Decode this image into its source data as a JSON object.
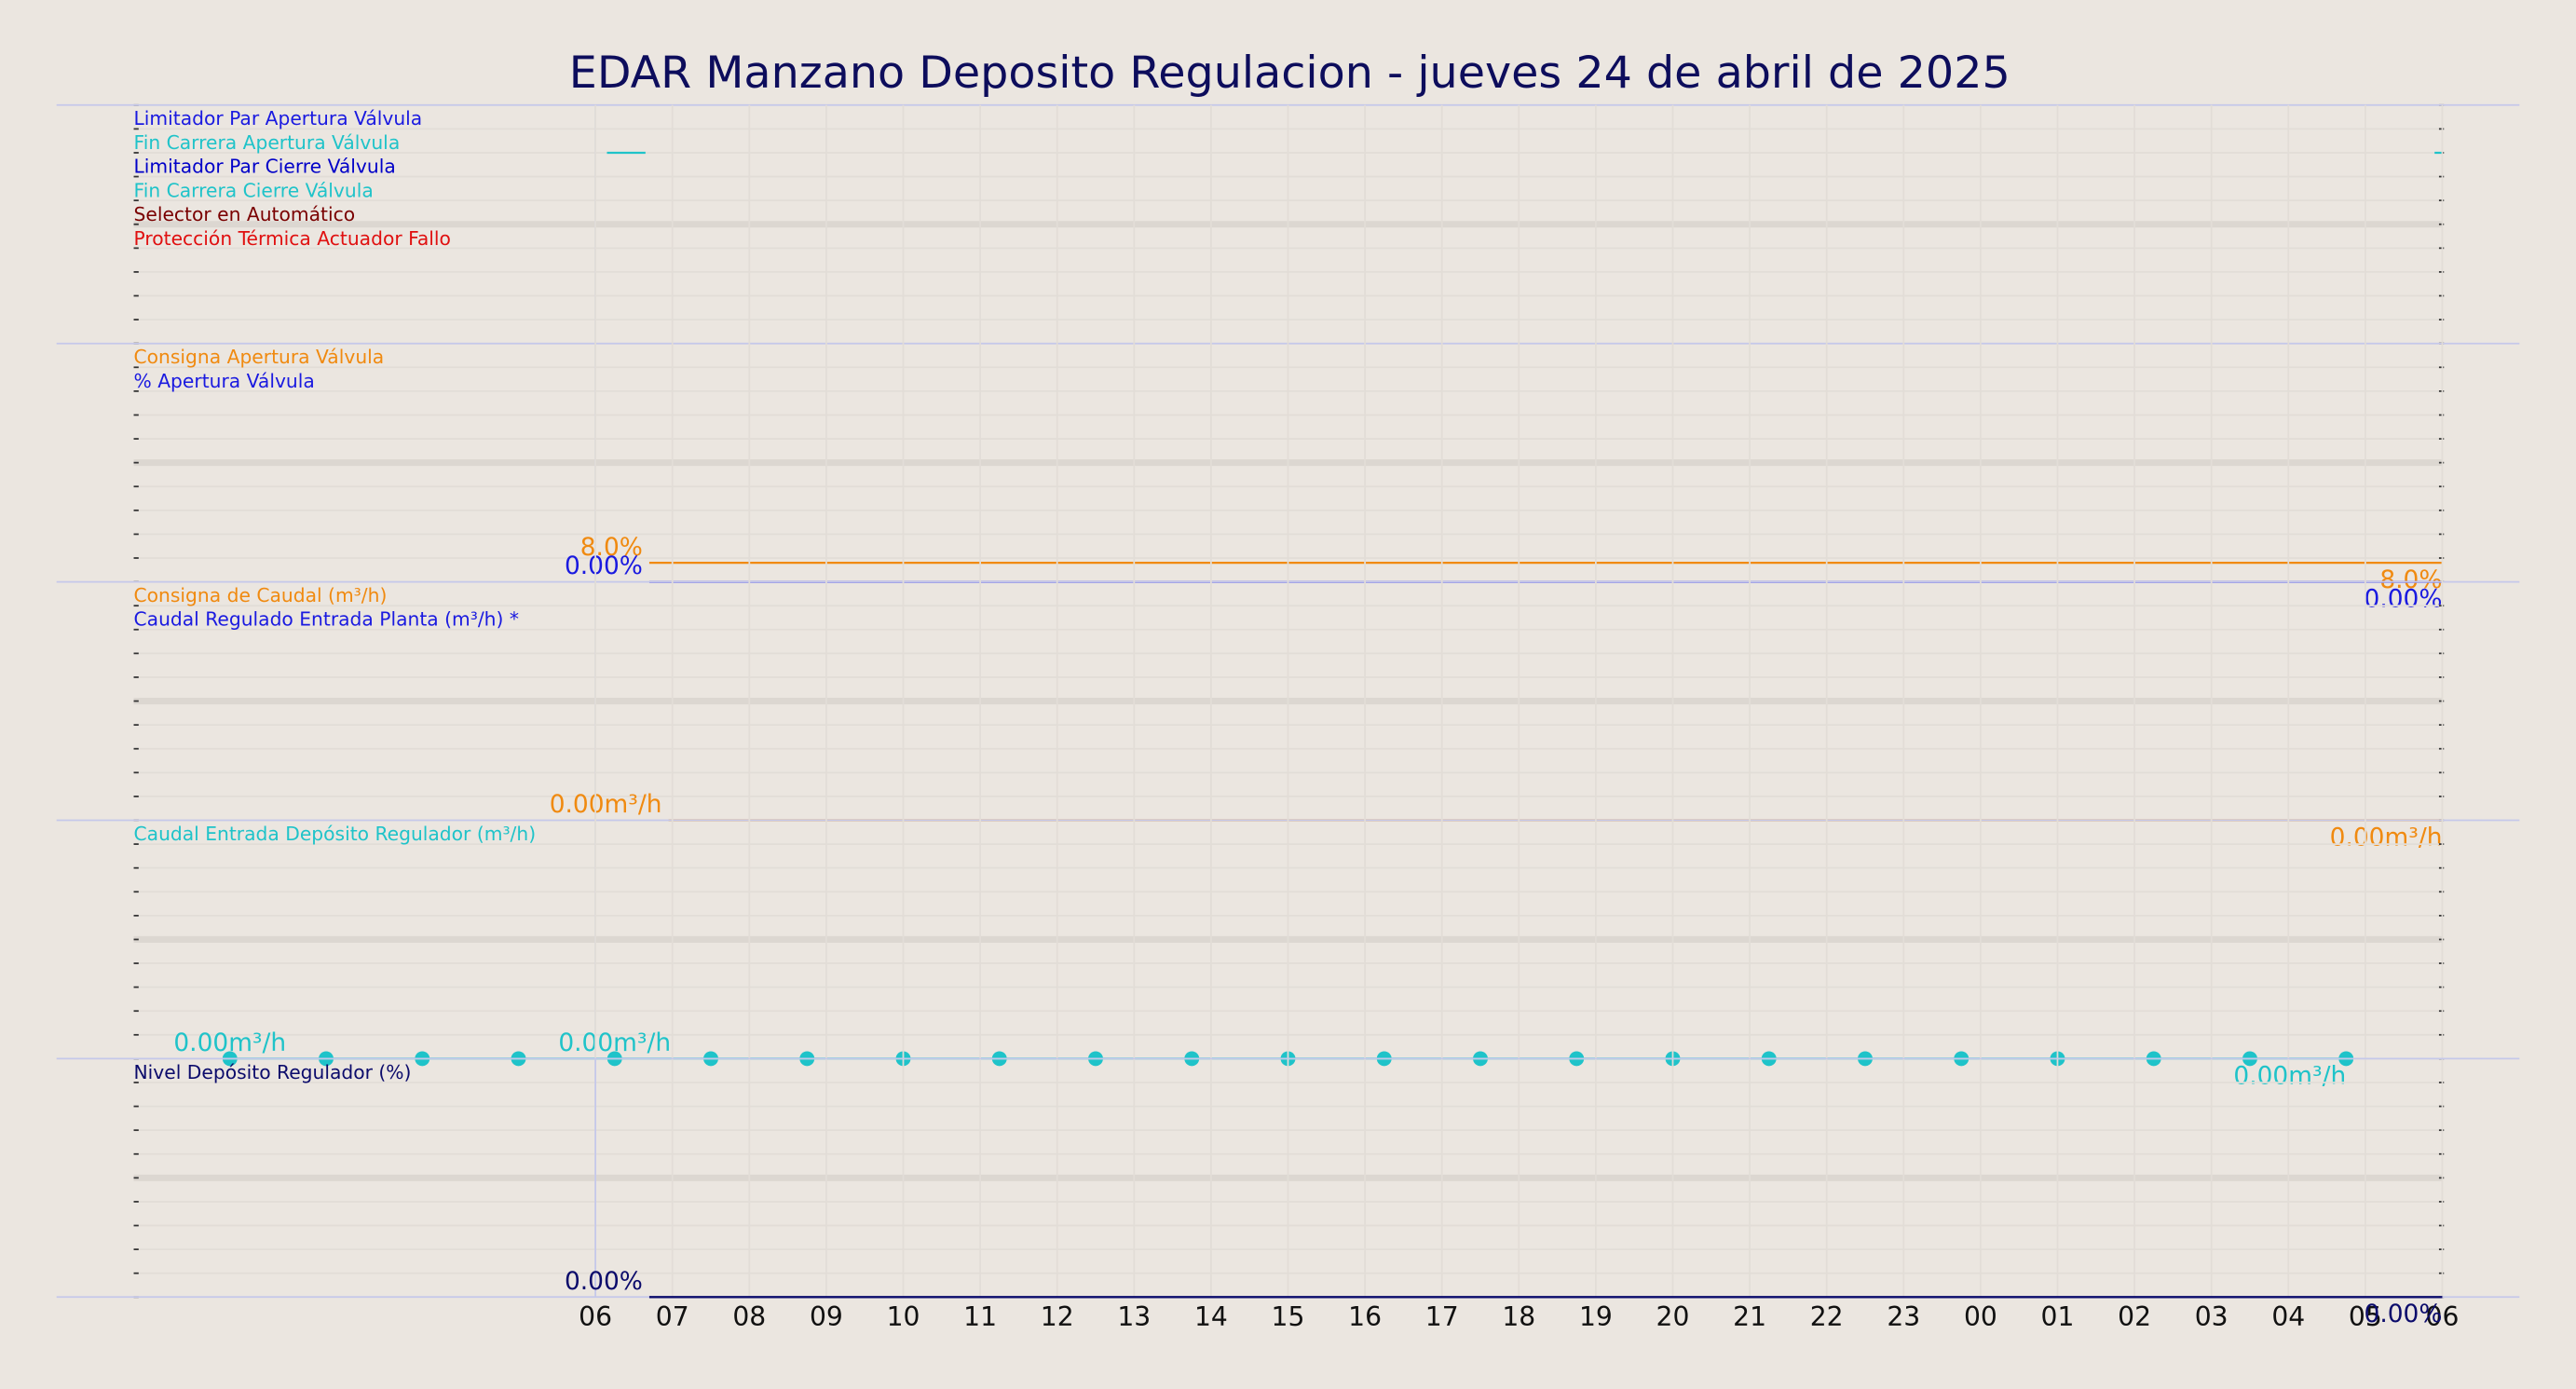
{
  "title": "EDAR Manzano Deposito Regulacion   -   jueves 24 de abril de 2025",
  "chart_data": [
    {
      "type": "line",
      "xlim": [
        -6,
        24
      ],
      "ylim": [
        0,
        100
      ],
      "yticks": [
        0,
        10,
        20,
        30,
        40,
        50,
        60,
        70,
        80,
        90,
        100
      ],
      "series": [
        {
          "name": "Limitador Par Apertura Válvula",
          "color": "#1a1ae0"
        },
        {
          "name": "Fin Carrera Apertura Válvula",
          "color": "#1fc3c9",
          "x": [
            0.15,
            0.65,
            12,
            23.9,
            24
          ],
          "values": [
            80,
            80,
            null,
            80,
            80
          ]
        },
        {
          "name": "Limitador Par Cierre Válvula",
          "color": "#0000c8"
        },
        {
          "name": "Fin Carrera Cierre Válvula",
          "color": "#1fc3c9"
        },
        {
          "name": "Selector en Automático",
          "color": "#7a0000"
        },
        {
          "name": "Protección Térmica Actuador Fallo",
          "color": "#e01010"
        }
      ]
    },
    {
      "type": "line",
      "xlim": [
        -6,
        24
      ],
      "ylim": [
        0,
        100
      ],
      "yticks": [
        0,
        10,
        20,
        30,
        40,
        50,
        60,
        70,
        80,
        90,
        100
      ],
      "series": [
        {
          "name": "Consigna Apertura Válvula",
          "color": "#f08a10",
          "x": [
            0.7,
            24
          ],
          "values": [
            8,
            8
          ],
          "value_labels": [
            "8.0%",
            "8.0%"
          ]
        },
        {
          "name": "% Apertura Válvula",
          "color": "#1a1ae0",
          "x": [
            0.7,
            24
          ],
          "values": [
            0,
            0
          ],
          "value_labels": [
            "0.00%",
            "0.00%"
          ]
        }
      ]
    },
    {
      "type": "line",
      "xlim": [
        -6,
        24
      ],
      "ylim": [
        0,
        100
      ],
      "yticks": [
        0,
        10,
        20,
        30,
        40,
        50,
        60,
        70,
        80,
        90,
        100
      ],
      "series": [
        {
          "name": "Consigna de Caudal (m³/h)",
          "color": "#f08a10",
          "x": [
            0.95,
            24
          ],
          "values": [
            0,
            0
          ],
          "value_labels": [
            "0.00m³/h",
            "0.00m³/h"
          ]
        },
        {
          "name": "Caudal Regulado Entrada Planta (m³/h) *",
          "color": "#1a1ae0"
        }
      ]
    },
    {
      "type": "line",
      "xlim": [
        -6,
        24
      ],
      "ylim": [
        0,
        100
      ],
      "yticks": [
        0,
        10,
        20,
        30,
        40,
        50,
        60,
        70,
        80,
        90,
        100
      ],
      "markers": true,
      "series": [
        {
          "name": "Caudal Entrada Depósito Regulador (m³/h)",
          "color": "#1fc3c9",
          "x": [
            -4.75,
            -3.5,
            -2.25,
            -1,
            0.25,
            1.5,
            2.75,
            4,
            5.25,
            6.5,
            7.75,
            9,
            10.25,
            11.5,
            12.75,
            14,
            15.25,
            16.5,
            17.75,
            19,
            20.25,
            21.5,
            22.75
          ],
          "values": [
            0,
            0,
            0,
            0,
            0,
            0,
            0,
            0,
            0,
            0,
            0,
            0,
            0,
            0,
            0,
            0,
            0,
            0,
            0,
            0,
            0,
            0,
            0
          ],
          "value_labels": [
            "0.00m³/h",
            null,
            null,
            null,
            "0.00m³/h",
            null,
            null,
            null,
            null,
            null,
            null,
            null,
            null,
            null,
            null,
            null,
            null,
            null,
            null,
            null,
            null,
            null,
            "0.00m³/h"
          ]
        }
      ]
    },
    {
      "type": "line",
      "xlim": [
        -6,
        24
      ],
      "ylim": [
        0,
        100
      ],
      "yticks": [
        0,
        10,
        20,
        30,
        40,
        50,
        60,
        70,
        80,
        90,
        100
      ],
      "xticks": [
        {
          "value": 0,
          "label": "06"
        },
        {
          "value": 1,
          "label": "07"
        },
        {
          "value": 2,
          "label": "08"
        },
        {
          "value": 3,
          "label": "09"
        },
        {
          "value": 4,
          "label": "10"
        },
        {
          "value": 5,
          "label": "11"
        },
        {
          "value": 6,
          "label": "12"
        },
        {
          "value": 7,
          "label": "13"
        },
        {
          "value": 8,
          "label": "14"
        },
        {
          "value": 9,
          "label": "15"
        },
        {
          "value": 10,
          "label": "16"
        },
        {
          "value": 11,
          "label": "17"
        },
        {
          "value": 12,
          "label": "18"
        },
        {
          "value": 13,
          "label": "19"
        },
        {
          "value": 14,
          "label": "20"
        },
        {
          "value": 15,
          "label": "21"
        },
        {
          "value": 16,
          "label": "22"
        },
        {
          "value": 17,
          "label": "23"
        },
        {
          "value": 18,
          "label": "00"
        },
        {
          "value": 19,
          "label": "01"
        },
        {
          "value": 20,
          "label": "02"
        },
        {
          "value": 21,
          "label": "03"
        },
        {
          "value": 22,
          "label": "04"
        },
        {
          "value": 23,
          "label": "05"
        },
        {
          "value": 24,
          "label": "06"
        }
      ],
      "series": [
        {
          "name": "Nivel Depósito Regulador (%)",
          "color": "#0b0b6b",
          "x": [
            0.7,
            24
          ],
          "values": [
            0,
            0
          ],
          "value_labels": [
            "0.00%",
            "0.00%"
          ]
        }
      ]
    }
  ]
}
